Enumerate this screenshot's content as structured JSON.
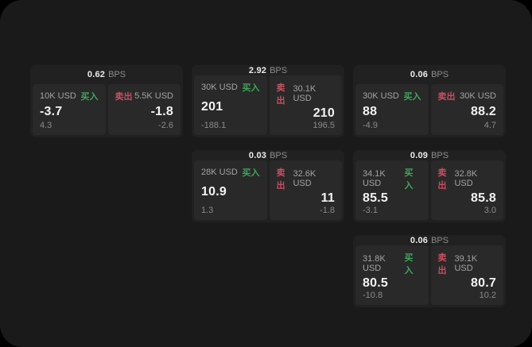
{
  "labels": {
    "bps": "BPS",
    "buy": "买入",
    "sell": "卖出"
  },
  "colors": {
    "background": "#000000",
    "surface": "#1a1a1b",
    "card": "#212121",
    "cell": "#292929",
    "buy_green": "#3ea65a",
    "sell_red": "#c94f5f"
  },
  "cards": [
    {
      "bps": "0.62",
      "buy": {
        "amount": "10K USD",
        "value": "-3.7",
        "delta": "4.3"
      },
      "sell": {
        "amount": "5.5K USD",
        "value": "-1.8",
        "delta": "-2.6"
      }
    },
    {
      "bps": "2.92",
      "buy": {
        "amount": "30K USD",
        "value": "201",
        "delta": "-188.1"
      },
      "sell": {
        "amount": "30.1K USD",
        "value": "210",
        "delta": "196.5"
      }
    },
    {
      "bps": "0.06",
      "buy": {
        "amount": "30K USD",
        "value": "88",
        "delta": "-4.9"
      },
      "sell": {
        "amount": "30K USD",
        "value": "88.2",
        "delta": "4.7"
      }
    },
    {
      "bps": "0.03",
      "buy": {
        "amount": "28K USD",
        "value": "10.9",
        "delta": "1.3"
      },
      "sell": {
        "amount": "32.6K USD",
        "value": "11",
        "delta": "-1.8"
      }
    },
    {
      "bps": "0.09",
      "buy": {
        "amount": "34.1K USD",
        "value": "85.5",
        "delta": "-3.1"
      },
      "sell": {
        "amount": "32.8K USD",
        "value": "85.8",
        "delta": "3.0"
      }
    },
    {
      "bps": "0.06",
      "buy": {
        "amount": "31.8K USD",
        "value": "80.5",
        "delta": "-10.8"
      },
      "sell": {
        "amount": "39.1K USD",
        "value": "80.7",
        "delta": "10.2"
      }
    }
  ]
}
